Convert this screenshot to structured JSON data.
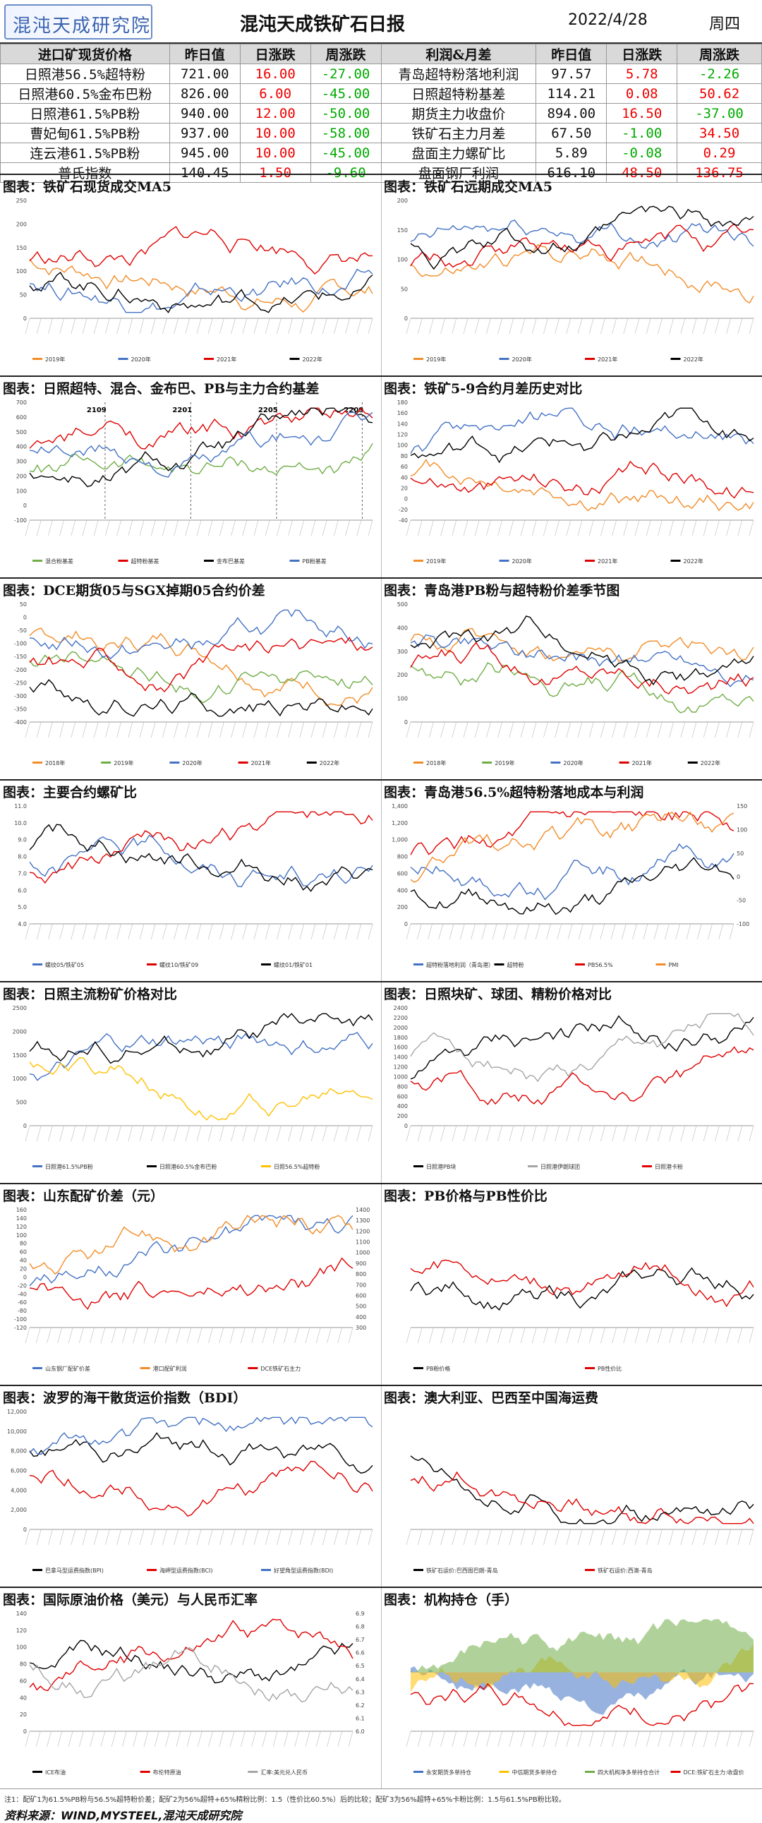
{
  "header": {
    "logo_text": "混沌天成研究院",
    "title": "混沌天成铁矿石日报",
    "date": "2022/4/28",
    "weekday": "周四"
  },
  "table": {
    "left_headers": [
      "进口矿现货价格",
      "昨日值",
      "日涨跌",
      "周涨跌"
    ],
    "right_headers": [
      "利润&月差",
      "昨日值",
      "日涨跌",
      "周涨跌"
    ],
    "left_rows": [
      [
        "日照港56.5%超特粉",
        "721.00",
        "16.00",
        "-27.00"
      ],
      [
        "日照港60.5%金布巴粉",
        "826.00",
        "6.00",
        "-45.00"
      ],
      [
        "日照港61.5%PB粉",
        "940.00",
        "12.00",
        "-50.00"
      ],
      [
        "曹妃甸61.5%PB粉",
        "937.00",
        "10.00",
        "-58.00"
      ],
      [
        "连云港61.5%PB粉",
        "945.00",
        "10.00",
        "-45.00"
      ],
      [
        "普氏指数",
        "140.45",
        "1.50",
        "-9.60"
      ]
    ],
    "right_rows": [
      [
        "青岛超特粉落地利润",
        "97.57",
        "5.78",
        "-2.26"
      ],
      [
        "日照超特粉基差",
        "114.21",
        "0.08",
        "50.62"
      ],
      [
        "期货主力收盘价",
        "894.00",
        "16.50",
        "-37.00"
      ],
      [
        "铁矿石主力月差",
        "67.50",
        "-1.00",
        "34.50"
      ],
      [
        "盘面主力螺矿比",
        "5.89",
        "-0.08",
        "0.29"
      ],
      [
        "盘面钢厂利润",
        "616.10",
        "48.50",
        "136.75"
      ]
    ]
  },
  "charts": [
    {
      "caption": "图表：铁矿石现货成交MA5",
      "legend": [
        "2019年",
        "2020年",
        "2021年",
        "2022年"
      ],
      "colors": [
        "#f28c28",
        "#4472c4",
        "#e00000",
        "#000000"
      ],
      "yticks": [
        "0",
        "50",
        "100",
        "150",
        "200",
        "250"
      ],
      "yrange": [
        0,
        250
      ],
      "type": "line"
    },
    {
      "caption": "图表：铁矿石远期成交MA5",
      "legend": [
        "2019年",
        "2020年",
        "2021年",
        "2022年"
      ],
      "colors": [
        "#f28c28",
        "#4472c4",
        "#e00000",
        "#000000"
      ],
      "yticks": [
        "0",
        "50",
        "100",
        "150",
        "200"
      ],
      "yrange": [
        0,
        200
      ],
      "type": "line"
    },
    {
      "caption": "图表：日照超特、混合、金布巴、PB与主力合约基差",
      "legend": [
        "混合粉基差",
        "超特粉基差",
        "金布巴基差",
        "PB粉基差"
      ],
      "colors": [
        "#70ad47",
        "#e00000",
        "#000000",
        "#4472c4"
      ],
      "yticks": [
        "-100",
        "0",
        "100",
        "200",
        "300",
        "400",
        "500",
        "600",
        "700"
      ],
      "yrange": [
        -100,
        700
      ],
      "annotations": [
        "2109",
        "2201",
        "2205",
        "2209"
      ],
      "type": "line"
    },
    {
      "caption": "图表：铁矿5-9合约月差历史对比",
      "legend": [
        "2019年",
        "2020年",
        "2021年",
        "2022年"
      ],
      "colors": [
        "#f28c28",
        "#4472c4",
        "#e00000",
        "#000000"
      ],
      "yticks": [
        "-40",
        "-20",
        "0",
        "20",
        "40",
        "60",
        "80",
        "100",
        "120",
        "140",
        "160",
        "180"
      ],
      "yrange": [
        -40,
        180
      ],
      "type": "line"
    },
    {
      "caption": "图表：DCE期货05与SGX掉期05合约价差",
      "legend": [
        "2018年",
        "2019年",
        "2020年",
        "2021年",
        "2022年"
      ],
      "colors": [
        "#f28c28",
        "#70ad47",
        "#4472c4",
        "#e00000",
        "#000000"
      ],
      "yticks": [
        "-400",
        "-350",
        "-300",
        "-250",
        "-200",
        "-150",
        "-100",
        "-50",
        "0",
        "50"
      ],
      "yrange": [
        -400,
        50
      ],
      "type": "line"
    },
    {
      "caption": "图表：青岛港PB粉与超特粉价差季节图",
      "legend": [
        "2018年",
        "2019年",
        "2020年",
        "2021年",
        "2022年"
      ],
      "colors": [
        "#f28c28",
        "#70ad47",
        "#4472c4",
        "#e00000",
        "#000000"
      ],
      "yticks": [
        "0",
        "100",
        "200",
        "300",
        "400",
        "500"
      ],
      "yrange": [
        0,
        500
      ],
      "type": "line"
    },
    {
      "caption": "图表：主要合约螺矿比",
      "legend": [
        "螺纹05/铁矿05",
        "螺纹10/铁矿09",
        "螺纹01/铁矿01"
      ],
      "colors": [
        "#4472c4",
        "#e00000",
        "#000000"
      ],
      "yticks": [
        "4.0",
        "5.0",
        "6.0",
        "7.0",
        "8.0",
        "9.0",
        "10.0",
        "11.0"
      ],
      "yrange": [
        4,
        11
      ],
      "type": "line"
    },
    {
      "caption": "图表：青岛港56.5%超特粉落地成本与利润",
      "legend": [
        "超特粉落地利润（青岛港）",
        "超特粉",
        "PB56.5%",
        "PMI"
      ],
      "colors": [
        "#4472c4",
        "#000000",
        "#e00000",
        "#f28c28"
      ],
      "yticks": [
        "0",
        "200",
        "400",
        "600",
        "800",
        "1,000",
        "1,200",
        "1,400"
      ],
      "yrange": [
        0,
        1400
      ],
      "y2ticks": [
        "-100",
        "-50",
        "0",
        "50",
        "100",
        "150"
      ],
      "type": "mixed"
    },
    {
      "caption": "图表：日照主流粉矿价格对比",
      "legend": [
        "日照港61.5%PB粉",
        "日照港60.5%金布巴粉",
        "日照56.5%超特粉"
      ],
      "colors": [
        "#4472c4",
        "#000000",
        "#ffc000"
      ],
      "yticks": [
        "0",
        "500",
        "1000",
        "1500",
        "2000",
        "2500"
      ],
      "yrange": [
        0,
        2500
      ],
      "type": "line"
    },
    {
      "caption": "图表：日照块矿、球团、精粉价格对比",
      "legend": [
        "日照港PB块",
        "日照港伊朗球团",
        "日照港卡粉"
      ],
      "colors": [
        "#000000",
        "#a5a5a5",
        "#e00000"
      ],
      "yticks": [
        "0",
        "200",
        "400",
        "600",
        "800",
        "1000",
        "1200",
        "1400",
        "1600",
        "1800",
        "2000",
        "2200",
        "2400"
      ],
      "yrange": [
        0,
        2400
      ],
      "type": "line"
    },
    {
      "caption": "图表：山东配矿价差（元）",
      "legend": [
        "山东钢厂配矿价差",
        "港口配矿利润",
        "DCE铁矿石主力"
      ],
      "colors": [
        "#4472c4",
        "#f28c28",
        "#e00000"
      ],
      "yticks": [
        "-120",
        "-100",
        "-80",
        "-60",
        "-40",
        "-20",
        "0",
        "20",
        "40",
        "60",
        "80",
        "100",
        "120",
        "140",
        "160"
      ],
      "yrange": [
        -120,
        160
      ],
      "y2ticks": [
        "300",
        "400",
        "500",
        "600",
        "700",
        "800",
        "900",
        "1000",
        "1100",
        "1200",
        "1300",
        "1400"
      ],
      "type": "line"
    },
    {
      "caption": "图表：PB价格与PB性价比",
      "legend": [
        "PB粉价格",
        "PB性价比"
      ],
      "colors": [
        "#000000",
        "#e00000"
      ],
      "yticks": [],
      "yrange": [
        0,
        100
      ],
      "type": "line"
    },
    {
      "caption": "图表：波罗的海干散货运价指数（BDI）",
      "legend": [
        "巴拿马型运费指数(BPI)",
        "海岬型运费指数(BCI)",
        "好望角型运费指数(BDI)"
      ],
      "colors": [
        "#000000",
        "#e00000",
        "#4472c4"
      ],
      "yticks": [
        "0",
        "2,000",
        "4,000",
        "6,000",
        "8,000",
        "10,000",
        "12,000"
      ],
      "yrange": [
        0,
        12000
      ],
      "type": "line"
    },
    {
      "caption": "图表：澳大利亚、巴西至中国海运费",
      "legend": [
        "铁矿石运价:巴西图巴朗-青岛",
        "铁矿石运价:西澳-青岛"
      ],
      "colors": [
        "#000000",
        "#e00000"
      ],
      "yticks": [],
      "yrange": [
        0,
        100
      ],
      "type": "line"
    },
    {
      "caption": "图表：国际原油价格（美元）与人民币汇率",
      "legend": [
        "ICE布油",
        "布伦特原油",
        "汇率:美元兑人民币"
      ],
      "colors": [
        "#000000",
        "#e00000",
        "#a5a5a5"
      ],
      "yticks": [
        "0",
        "20",
        "40",
        "60",
        "80",
        "100",
        "120",
        "140"
      ],
      "yrange": [
        0,
        140
      ],
      "y2ticks": [
        "6.0",
        "6.1",
        "6.2",
        "6.3",
        "6.4",
        "6.5",
        "6.6",
        "6.7",
        "6.8",
        "6.9"
      ],
      "type": "line"
    },
    {
      "caption": "图表：机构持仓（手）",
      "legend": [
        "永安期货多单持仓",
        "中信期货多单持仓",
        "四大机构净多单持仓合计",
        "DCE:铁矿石主力:收盘价"
      ],
      "colors": [
        "#4472c4",
        "#ffc000",
        "#70ad47",
        "#e00000"
      ],
      "yticks": [],
      "yrange": [
        0,
        100
      ],
      "type": "area"
    }
  ],
  "footer": {
    "note": "注1：配矿1为61.5%PB粉与56.5%超特粉价差；配矿2为56%超特+65%精粉比例：1.5（性价比60.5%）后的比较；配矿3为56%超特+65%卡粉比例：1.5与61.5%PB粉比较。",
    "source": "资料来源：WIND,MYSTEEL,混沌天成研究院"
  }
}
